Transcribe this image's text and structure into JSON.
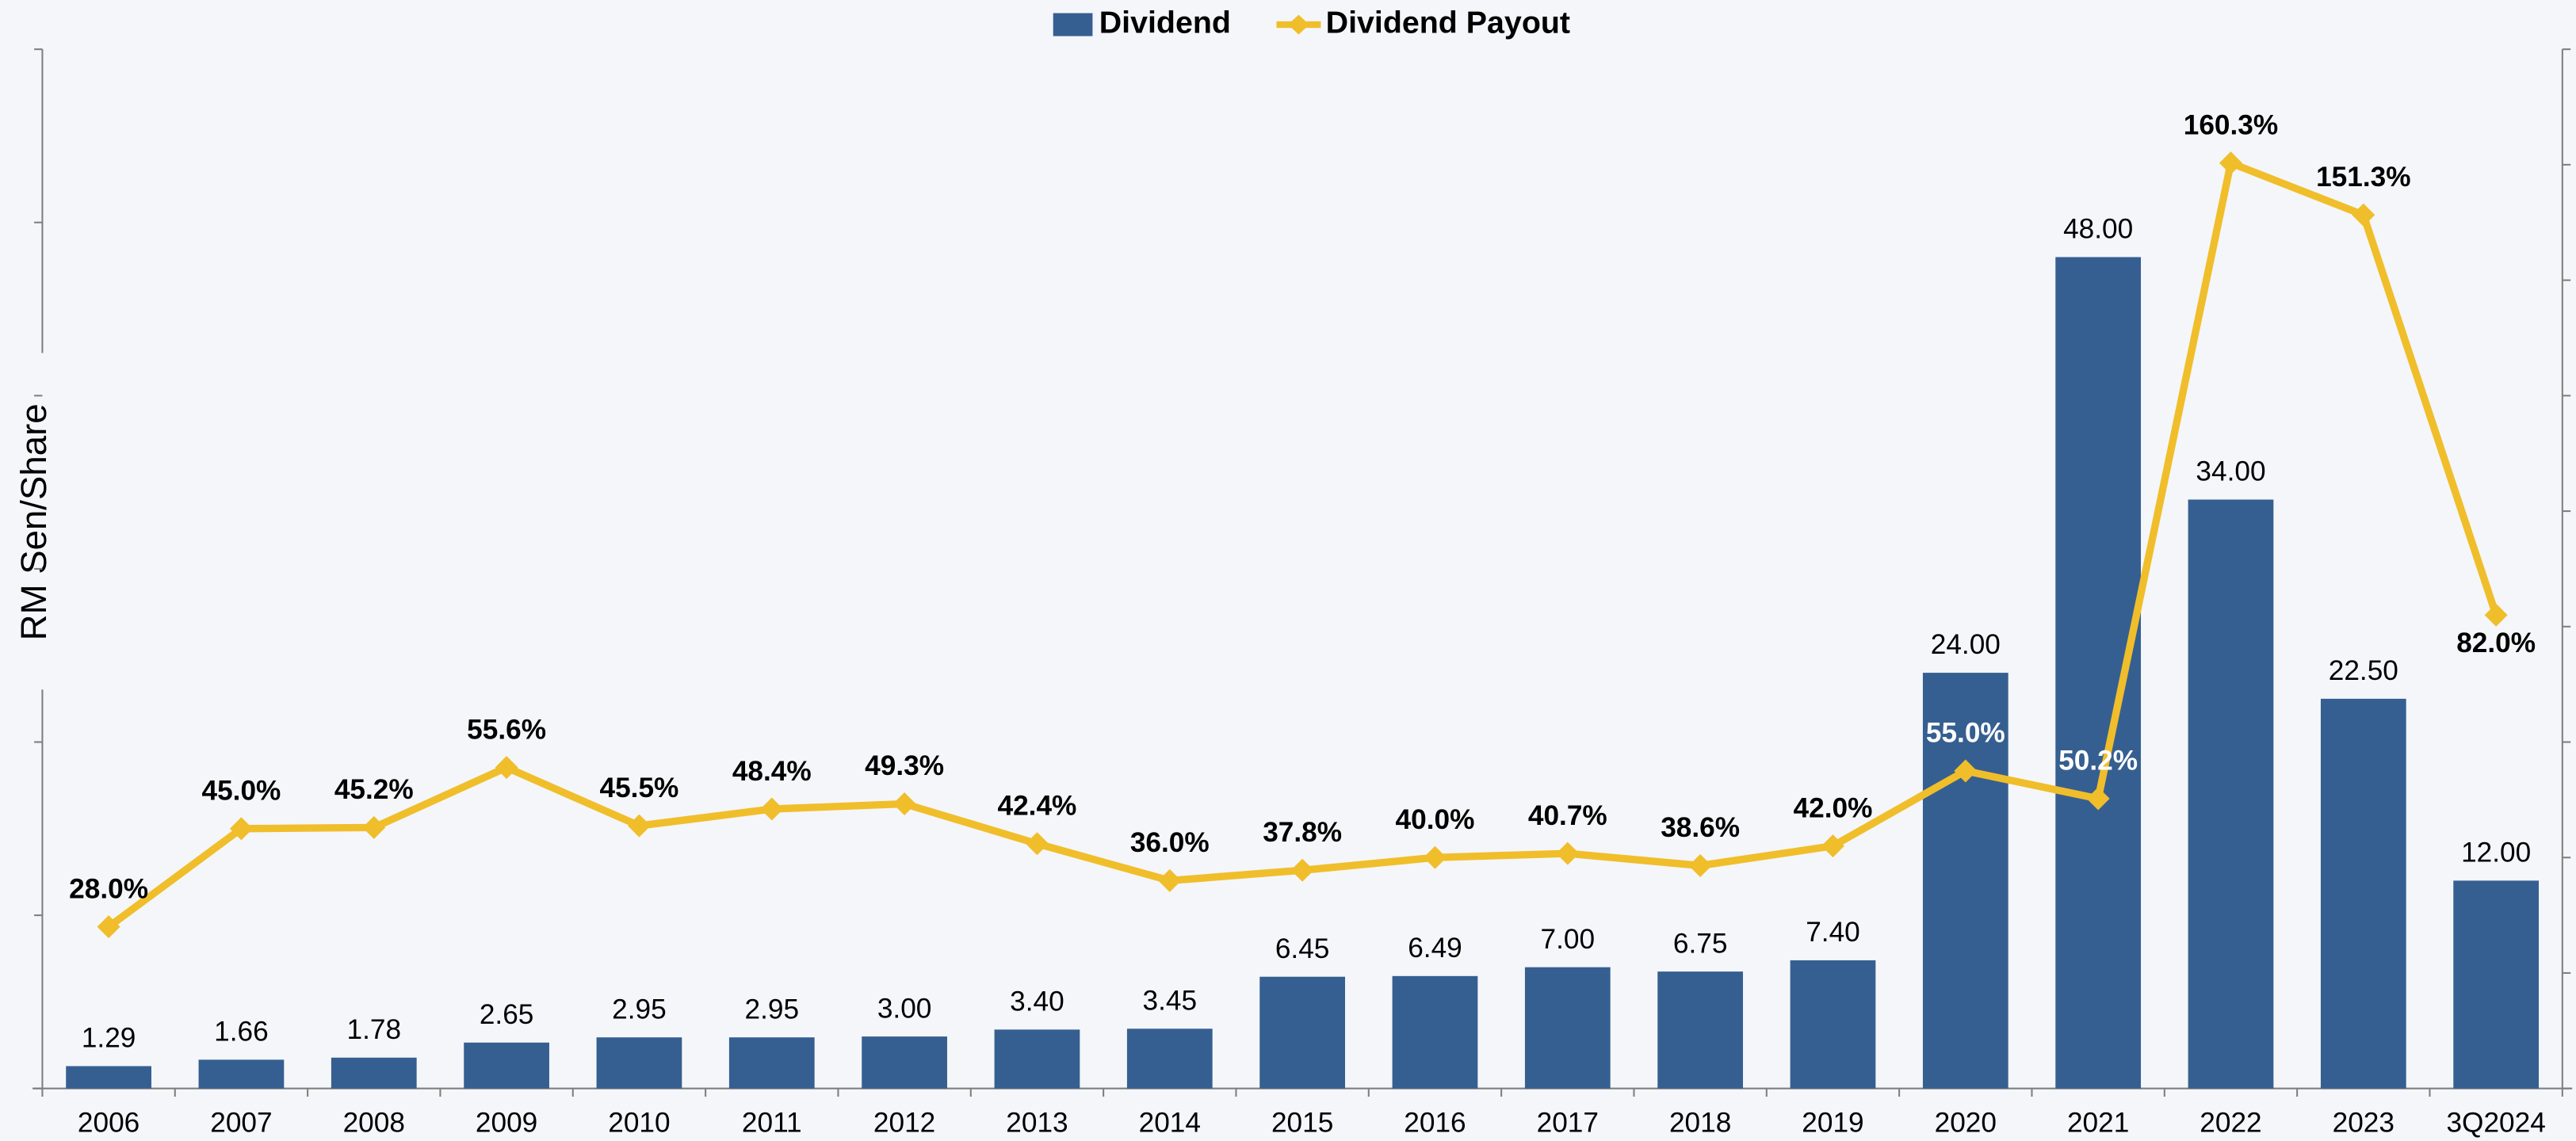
{
  "chart_data": {
    "type": "bar_line",
    "y_axis_label": "RM Sen/Share",
    "categories": [
      "2006",
      "2007",
      "2008",
      "2009",
      "2010",
      "2011",
      "2012",
      "2013",
      "2014",
      "2015",
      "2016",
      "2017",
      "2018",
      "2019",
      "2020",
      "2021",
      "2022",
      "2023",
      "3Q2024"
    ],
    "ylim": [
      0,
      60
    ],
    "yticks": [
      0,
      10,
      20,
      30,
      40,
      50,
      60
    ],
    "y2lim": [
      0,
      180
    ],
    "y2ticks": [
      0,
      20,
      40,
      60,
      80,
      100,
      120,
      140,
      160,
      180
    ],
    "legend": "top",
    "series": [
      {
        "name": "Dividend",
        "type": "bar",
        "color": "#365f91",
        "values": [
          1.29,
          1.66,
          1.78,
          2.65,
          2.95,
          2.95,
          3.0,
          3.4,
          3.45,
          6.45,
          6.49,
          7.0,
          6.75,
          7.4,
          24.0,
          48.0,
          34.0,
          22.5,
          12.0
        ],
        "value_labels": [
          "1.29",
          "1.66",
          "1.78",
          "2.65",
          "2.95",
          "2.95",
          "3.00",
          "3.40",
          "3.45",
          "6.45",
          "6.49",
          "7.00",
          "6.75",
          "7.40",
          "24.00",
          "48.00",
          "34.00",
          "22.50",
          "12.00"
        ]
      },
      {
        "name": "Dividend Payout",
        "type": "line",
        "axis": "y2",
        "color": "#f0be2a",
        "values": [
          28.0,
          45.0,
          45.2,
          55.6,
          45.5,
          48.4,
          49.3,
          42.4,
          36.0,
          37.8,
          40.0,
          40.7,
          38.6,
          42.0,
          55.0,
          50.2,
          160.3,
          151.3,
          82.0
        ],
        "value_labels": [
          "28.0%",
          "45.0%",
          "45.2%",
          "55.6%",
          "45.5%",
          "48.4%",
          "49.3%",
          "42.4%",
          "36.0%",
          "37.8%",
          "40.0%",
          "40.7%",
          "38.6%",
          "42.0%",
          "55.0%",
          "50.2%",
          "160.3%",
          "151.3%",
          "82.0%"
        ]
      }
    ]
  }
}
